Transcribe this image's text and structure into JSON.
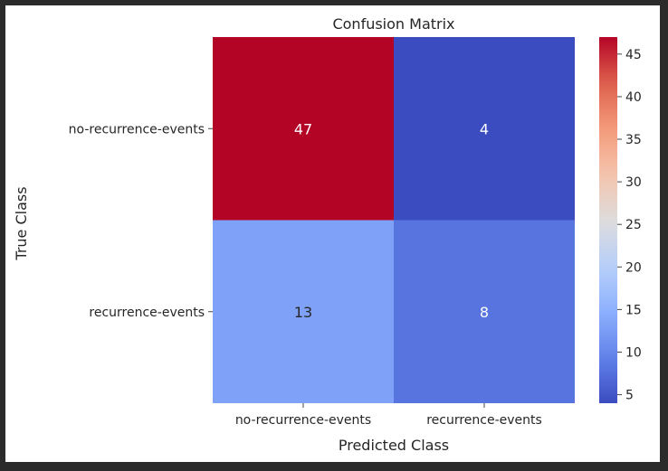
{
  "chart_data": {
    "type": "heatmap",
    "title": "Confusion Matrix",
    "xlabel": "Predicted Class",
    "ylabel": "True Class",
    "row_labels": [
      "no-recurrence-events",
      "recurrence-events"
    ],
    "col_labels": [
      "no-recurrence-events",
      "recurrence-events"
    ],
    "values": [
      [
        47,
        4
      ],
      [
        13,
        8
      ]
    ],
    "annotations": [
      "47",
      "4",
      "13",
      "8"
    ],
    "colormap": "coolwarm",
    "vmin": 4,
    "vmax": 47,
    "colorbar": {
      "ticks": [
        5,
        10,
        15,
        20,
        25,
        30,
        35,
        40,
        45
      ],
      "tick_labels": [
        "5",
        "10",
        "15",
        "20",
        "25",
        "30",
        "35",
        "40",
        "45"
      ]
    }
  }
}
